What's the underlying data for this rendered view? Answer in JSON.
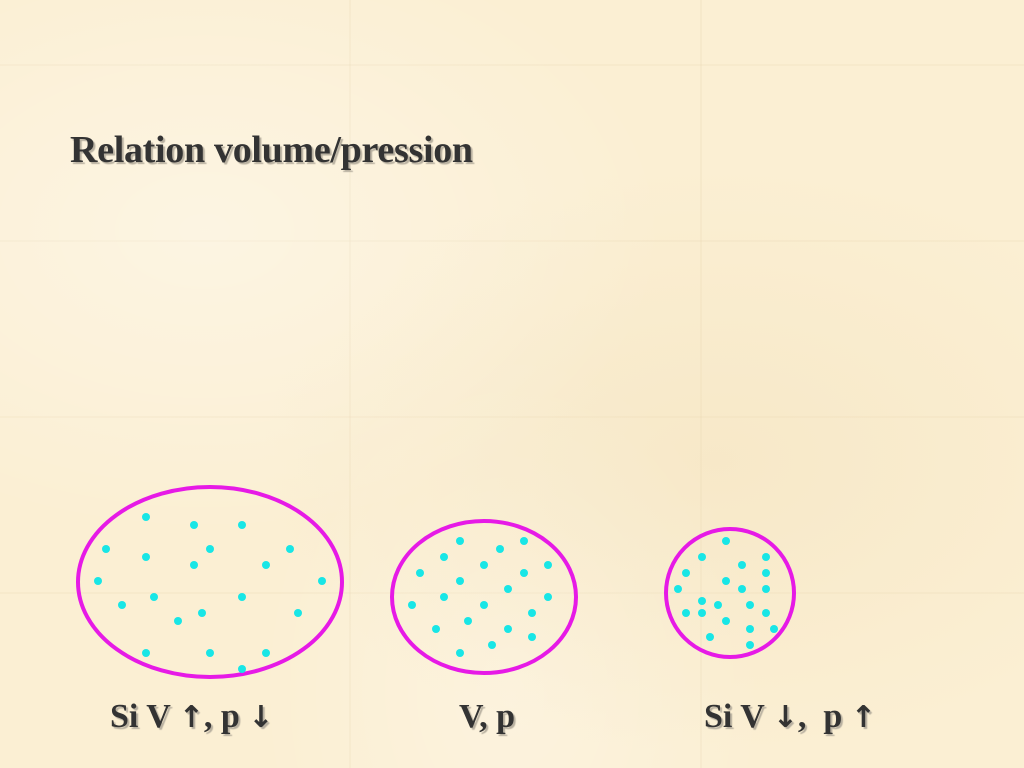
{
  "title": "Relation volume/pression",
  "colors": {
    "container_outline": "#e61ae6",
    "particles": "#18e6e6",
    "text": "#333333",
    "background": "#fbefd3"
  },
  "captions": [
    {
      "prefix": "Si V ",
      "arrow1": "↑",
      "middle": ", p ",
      "arrow2": "↓",
      "suffix": ""
    },
    {
      "prefix": "V, p",
      "arrow1": "",
      "middle": "",
      "arrow2": "",
      "suffix": ""
    },
    {
      "prefix": "Si V ",
      "arrow1": "↓",
      "middle": ",  p ",
      "arrow2": "↑",
      "suffix": ""
    }
  ]
}
